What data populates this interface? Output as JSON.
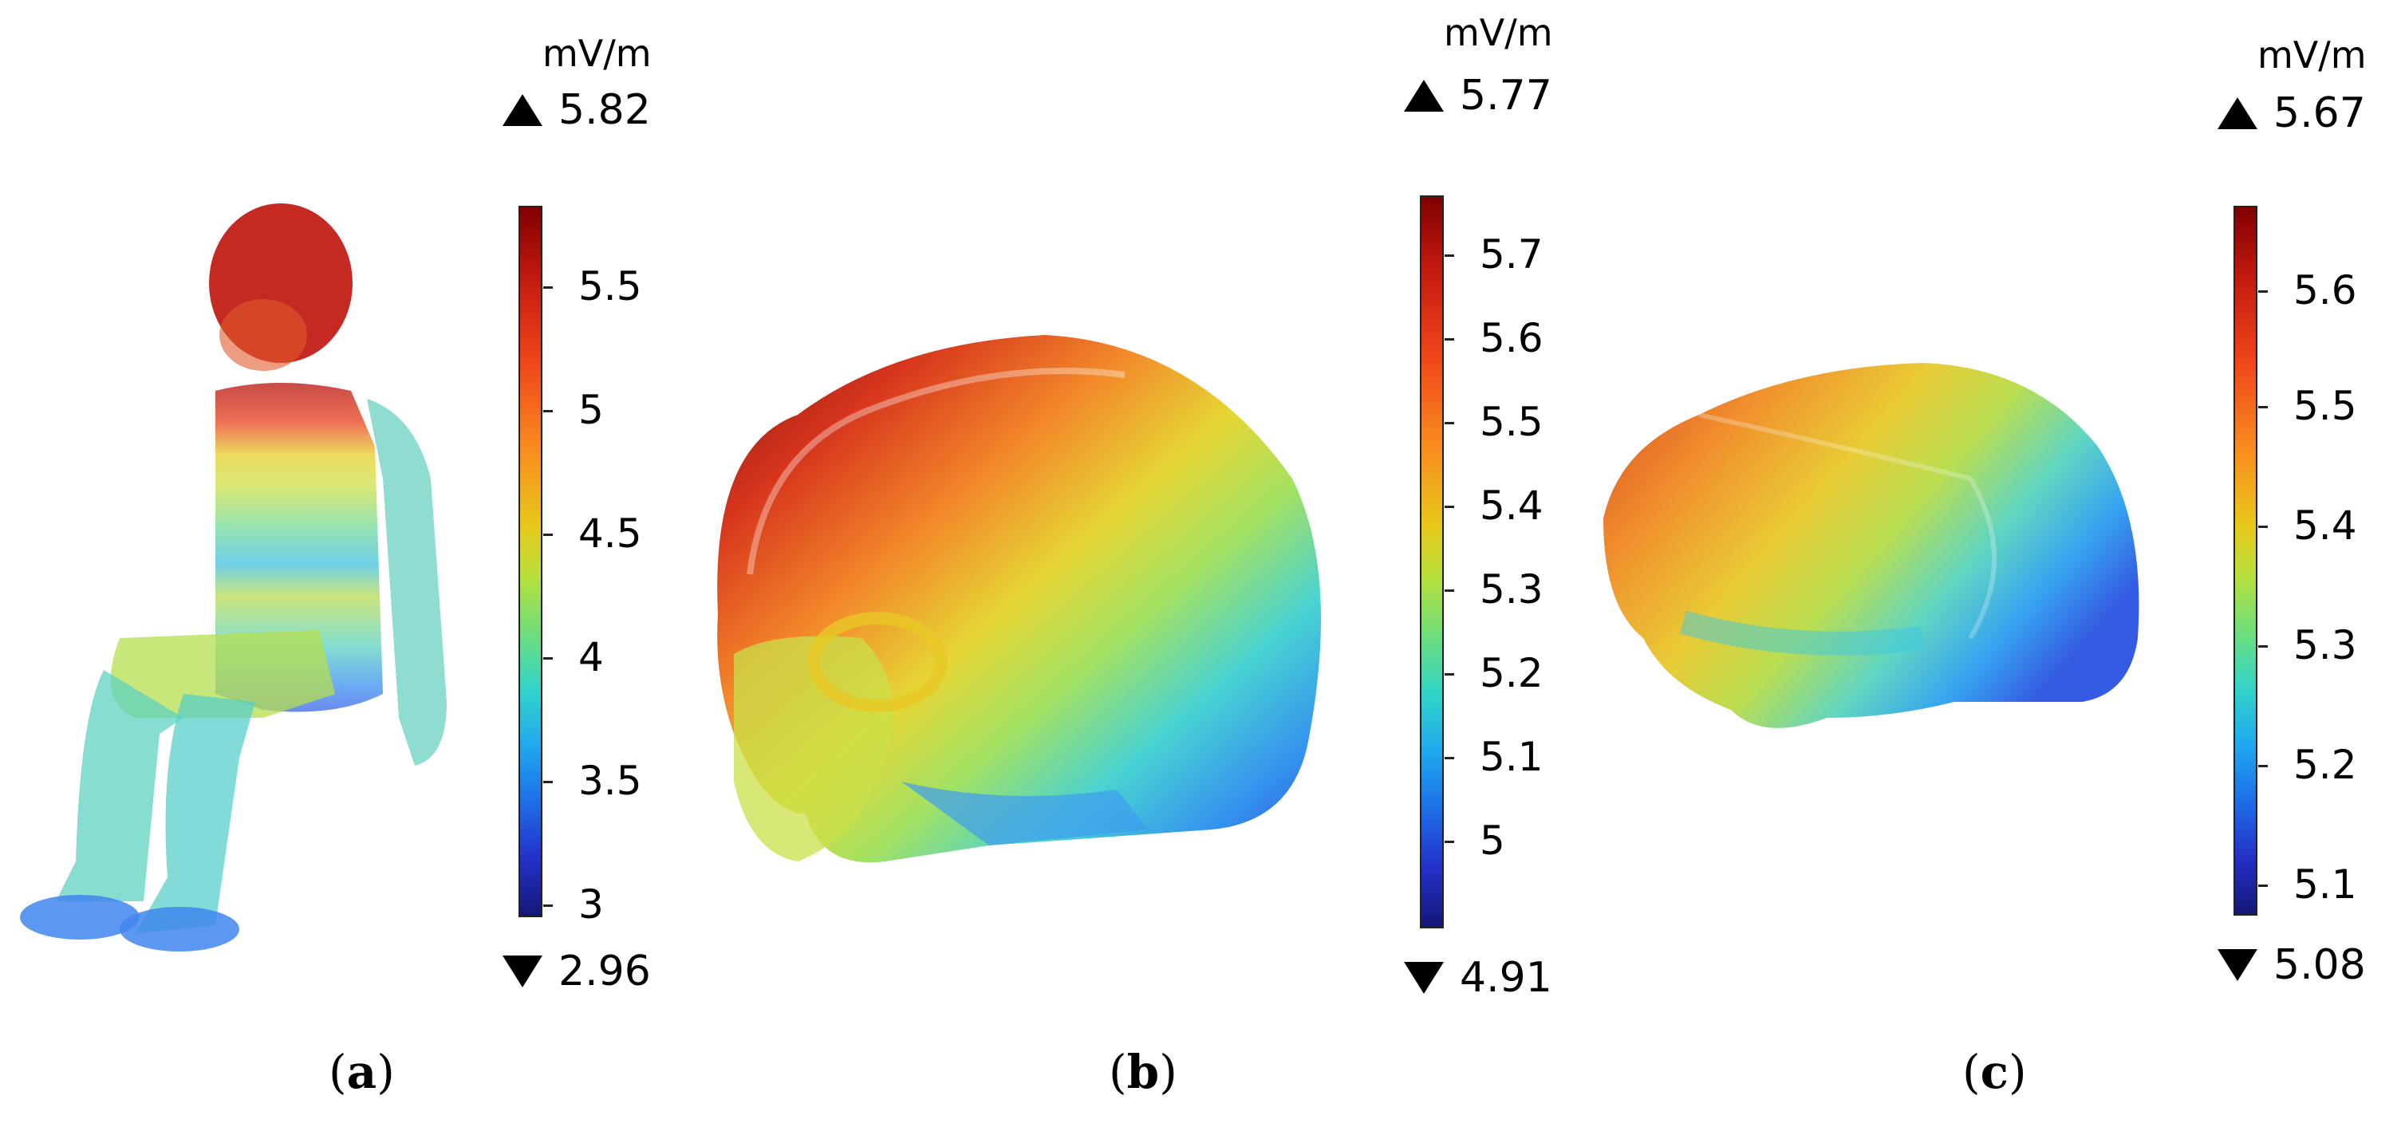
{
  "panels": [
    {
      "id": "a",
      "caption_letter": "a",
      "unit": "mV/m",
      "max": "5.82",
      "min": "2.96",
      "ticks": [
        "5.5",
        "5",
        "4.5",
        "4",
        "3.5",
        "3"
      ]
    },
    {
      "id": "b",
      "caption_letter": "b",
      "unit": "mV/m",
      "max": "5.77",
      "min": "4.91",
      "ticks": [
        "5.7",
        "5.6",
        "5.5",
        "5.4",
        "5.3",
        "5.2",
        "5.1",
        "5"
      ]
    },
    {
      "id": "c",
      "caption_letter": "c",
      "unit": "mV/m",
      "max": "5.67",
      "min": "5.08",
      "ticks": [
        "5.6",
        "5.5",
        "5.4",
        "5.3",
        "5.2",
        "5.1"
      ]
    }
  ],
  "colormap": [
    "#800000",
    "#c41a10",
    "#f0461a",
    "#f98b1e",
    "#e8c81a",
    "#b8e03a",
    "#6fde7a",
    "#32d4c8",
    "#1fa9ef",
    "#1e6ee8",
    "#2430c8",
    "#141878"
  ]
}
